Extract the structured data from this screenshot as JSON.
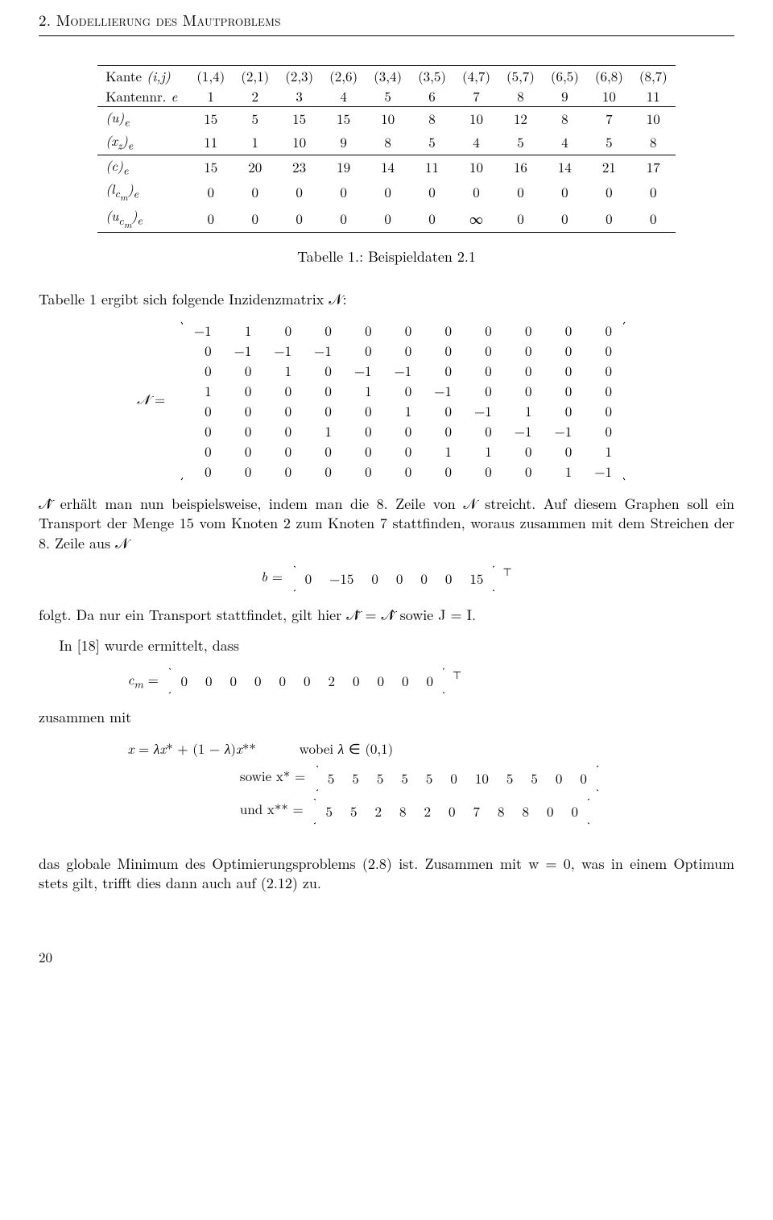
{
  "section_header": "2. Modellierung des Mautproblems",
  "table": {
    "rows": [
      {
        "label": "Kante (i,j)",
        "cells": [
          "(1,4)",
          "(2,1)",
          "(2,3)",
          "(2,6)",
          "(3,4)",
          "(3,5)",
          "(4,7)",
          "(5,7)",
          "(6,5)",
          "(6,8)",
          "(8,7)"
        ]
      },
      {
        "label": "Kantennr. e",
        "cells": [
          "1",
          "2",
          "3",
          "4",
          "5",
          "6",
          "7",
          "8",
          "9",
          "10",
          "11"
        ]
      },
      {
        "label": "(u)_e",
        "cells": [
          "15",
          "5",
          "15",
          "15",
          "10",
          "8",
          "10",
          "12",
          "8",
          "7",
          "10"
        ]
      },
      {
        "label": "(x_z)_e",
        "cells": [
          "11",
          "1",
          "10",
          "9",
          "8",
          "5",
          "4",
          "5",
          "4",
          "5",
          "8"
        ]
      },
      {
        "label": "(c)_e",
        "cells": [
          "15",
          "20",
          "23",
          "19",
          "14",
          "11",
          "10",
          "16",
          "14",
          "21",
          "17"
        ]
      },
      {
        "label": "(l_cm)_e",
        "cells": [
          "0",
          "0",
          "0",
          "0",
          "0",
          "0",
          "0",
          "0",
          "0",
          "0",
          "0"
        ]
      },
      {
        "label": "(u_cm)_e",
        "cells": [
          "0",
          "0",
          "0",
          "0",
          "0",
          "0",
          "∞",
          "0",
          "0",
          "0",
          "0"
        ]
      }
    ],
    "rules_after": [
      0,
      2,
      4,
      7
    ],
    "rules_before0": true,
    "caption": "Tabelle 1.: Beispieldaten 2.1"
  },
  "p1": "Tabelle 1 ergibt sich folgende Inzidenzmatrix 𝒩:",
  "matrixN": [
    [
      "−1",
      "1",
      "0",
      "0",
      "0",
      "0",
      "0",
      "0",
      "0",
      "0",
      "0"
    ],
    [
      "0",
      "−1",
      "−1",
      "−1",
      "0",
      "0",
      "0",
      "0",
      "0",
      "0",
      "0"
    ],
    [
      "0",
      "0",
      "1",
      "0",
      "−1",
      "−1",
      "0",
      "0",
      "0",
      "0",
      "0"
    ],
    [
      "1",
      "0",
      "0",
      "0",
      "1",
      "0",
      "−1",
      "0",
      "0",
      "0",
      "0"
    ],
    [
      "0",
      "0",
      "0",
      "0",
      "0",
      "1",
      "0",
      "−1",
      "1",
      "0",
      "0"
    ],
    [
      "0",
      "0",
      "0",
      "1",
      "0",
      "0",
      "0",
      "0",
      "−1",
      "−1",
      "0"
    ],
    [
      "0",
      "0",
      "0",
      "0",
      "0",
      "0",
      "1",
      "1",
      "0",
      "0",
      "1"
    ],
    [
      "0",
      "0",
      "0",
      "0",
      "0",
      "0",
      "0",
      "0",
      "0",
      "1",
      "−1"
    ]
  ],
  "p2": "𝒩̂ erhält man nun beispielsweise, indem man die 8. Zeile von 𝒩 streicht.",
  "p3": "Auf diesem Graphen soll ein Transport der Menge 15 vom Knoten 2 zum Knoten 7 stattfinden, woraus zusammen mit dem Streichen der 8. Zeile aus 𝒩",
  "bvec": [
    "0",
    "−15",
    "0",
    "0",
    "0",
    "0",
    "15"
  ],
  "p4": "folgt. Da nur ein Transport stattfindet, gilt hier 𝒩̄ = 𝒩̂ sowie J = I.",
  "p5": "In [18] wurde ermittelt, dass",
  "cmvec": [
    "0",
    "0",
    "0",
    "0",
    "0",
    "0",
    "2",
    "0",
    "0",
    "0",
    "0"
  ],
  "p6": "zusammen mit",
  "xeq": "x = λx* + (1 − λ)x**        wobei λ ∈ (0,1)",
  "xstar_label": "sowie x* =",
  "xstar": [
    "5",
    "5",
    "5",
    "5",
    "5",
    "0",
    "10",
    "5",
    "5",
    "0",
    "0"
  ],
  "xstarstar_label": "und x** =",
  "xstarstar": [
    "5",
    "5",
    "2",
    "8",
    "2",
    "0",
    "7",
    "8",
    "8",
    "0",
    "0"
  ],
  "p7": "das globale Minimum des Optimierungsproblems (2.8) ist. Zusammen mit w = 0, was in einem Optimum stets gilt, trifft dies dann auch auf (2.12) zu.",
  "page_number": "20"
}
